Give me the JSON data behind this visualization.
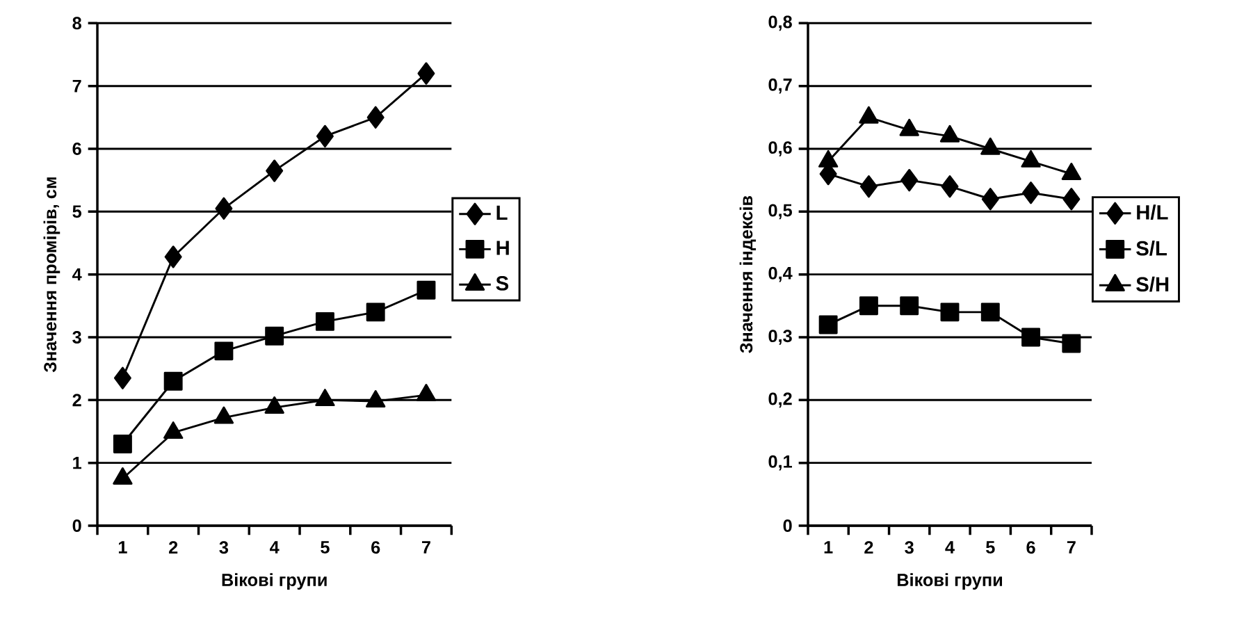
{
  "chart_data": [
    {
      "type": "line",
      "xlabel": "Вікові групи",
      "ylabel": "Значення промірів, см",
      "categories": [
        "1",
        "2",
        "3",
        "4",
        "5",
        "6",
        "7"
      ],
      "ylim": [
        0,
        8
      ],
      "yticks": [
        0,
        1,
        2,
        3,
        4,
        5,
        6,
        7,
        8
      ],
      "grid": "y",
      "legend": "right",
      "line_style": "solid",
      "series": [
        {
          "name": "L",
          "color": "#000000",
          "marker": "diamond",
          "values": [
            2.35,
            4.28,
            5.05,
            5.65,
            6.2,
            6.5,
            7.2
          ]
        },
        {
          "name": "H",
          "color": "#000000",
          "marker": "square",
          "values": [
            1.3,
            2.3,
            2.78,
            3.02,
            3.25,
            3.4,
            3.75
          ]
        },
        {
          "name": "S",
          "color": "#000000",
          "marker": "triangle",
          "values": [
            0.75,
            1.48,
            1.72,
            1.88,
            2.0,
            1.98,
            2.08
          ]
        }
      ]
    },
    {
      "type": "line",
      "xlabel": "Вікові групи",
      "ylabel": "Значення індексів",
      "categories": [
        "1",
        "2",
        "3",
        "4",
        "5",
        "6",
        "7"
      ],
      "ylim": [
        0,
        0.8
      ],
      "yticks": [
        0,
        {
          "value": 0.1,
          "label": "0,1"
        },
        {
          "value": 0.2,
          "label": "0,2"
        },
        {
          "value": 0.3,
          "label": "0,3"
        },
        {
          "value": 0.4,
          "label": "0,4"
        },
        {
          "value": 0.5,
          "label": "0,5"
        },
        {
          "value": 0.6,
          "label": "0,6"
        },
        {
          "value": 0.7,
          "label": "0,7"
        },
        {
          "value": 0.8,
          "label": "0,8"
        }
      ],
      "grid": "y",
      "legend": "right",
      "line_style": "solid",
      "series": [
        {
          "name": "H/L",
          "color": "#000000",
          "marker": "diamond",
          "values": [
            0.56,
            0.54,
            0.55,
            0.54,
            0.52,
            0.53,
            0.52
          ]
        },
        {
          "name": "S/L",
          "color": "#000000",
          "marker": "square",
          "values": [
            0.32,
            0.35,
            0.35,
            0.34,
            0.34,
            0.3,
            0.29
          ]
        },
        {
          "name": "S/H",
          "color": "#000000",
          "marker": "triangle",
          "values": [
            0.58,
            0.65,
            0.63,
            0.62,
            0.6,
            0.58,
            0.56
          ]
        }
      ]
    }
  ]
}
